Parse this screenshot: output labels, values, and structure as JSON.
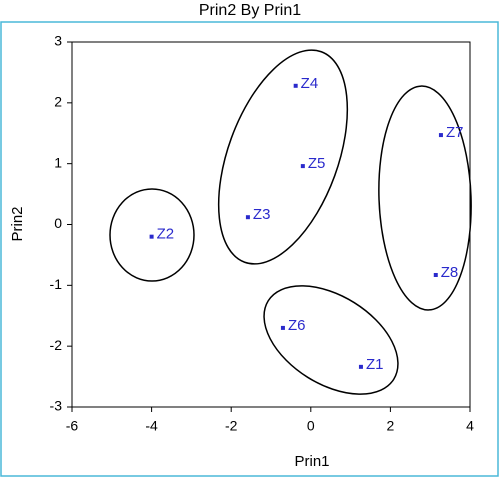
{
  "chart_data": {
    "type": "scatter",
    "title": "Prin2 By Prin1",
    "x_label": "Prin1",
    "y_label": "Prin2",
    "labels": [
      "Z4",
      "Z5",
      "Z3",
      "Z2",
      "Z6",
      "Z1",
      "Z7",
      "Z8"
    ],
    "x": [
      -0.38,
      -0.2,
      -1.58,
      -4.0,
      -0.7,
      1.26,
      3.27,
      3.14
    ],
    "y": [
      2.28,
      0.96,
      0.12,
      -0.2,
      -1.7,
      -2.34,
      1.47,
      -0.83
    ],
    "color": "#2a2acc",
    "xlim": [
      -6,
      4
    ],
    "xticks": [
      -6,
      -4,
      -2,
      0,
      2,
      4
    ],
    "ylim": [
      -3,
      3
    ],
    "yticks": [
      -3,
      -2,
      -1,
      0,
      1,
      2,
      3
    ]
  }
}
